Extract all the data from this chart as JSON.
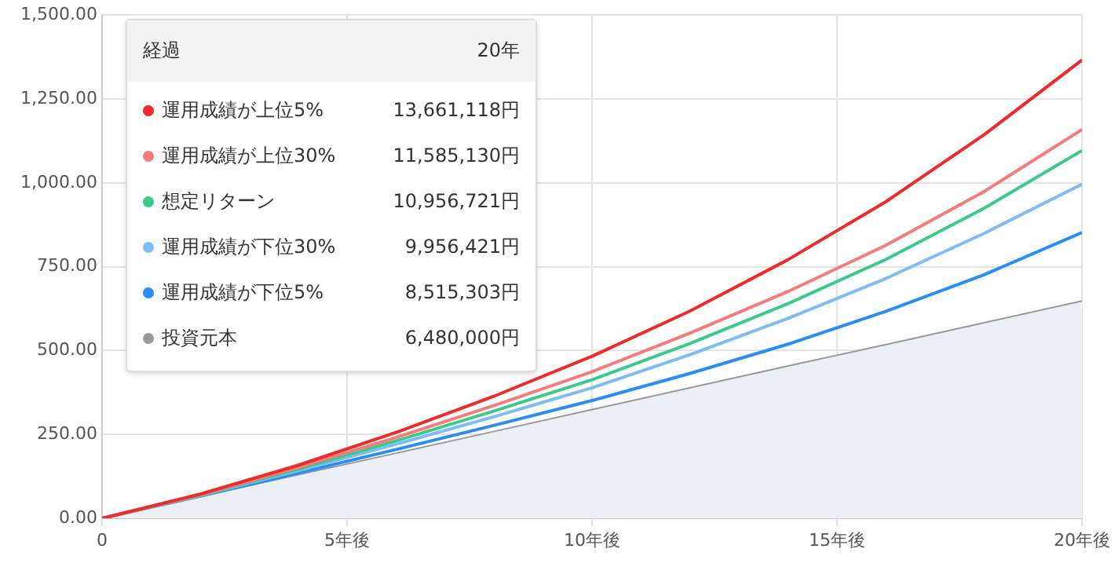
{
  "chart_data": {
    "type": "line",
    "x": [
      0,
      2,
      4,
      6,
      8,
      10,
      12,
      14,
      16,
      18,
      20
    ],
    "xlim": [
      0,
      20
    ],
    "xticks": [
      0,
      {
        "value": 5,
        "label": "5年後"
      },
      {
        "value": 10,
        "label": "10年後"
      },
      {
        "value": 15,
        "label": "15年後"
      },
      {
        "value": 20,
        "label": "20年後"
      }
    ],
    "ylim": [
      0,
      1500
    ],
    "yticks": [
      {
        "value": 0,
        "label": "0.00"
      },
      {
        "value": 250,
        "label": "250.00"
      },
      {
        "value": 500,
        "label": "500.00"
      },
      {
        "value": 750,
        "label": "750.00"
      },
      {
        "value": 1000,
        "label": "1,000.00"
      },
      {
        "value": 1250,
        "label": "1,250.00"
      },
      {
        "value": 1500,
        "label": "1,500.00"
      }
    ],
    "grid": true,
    "legend": "top left",
    "legend_title": "経過",
    "annotations": [
      "20年",
      "13,661,118円",
      "11,585,130円",
      "10,956,721円",
      "9,956,421円",
      "8,515,303円",
      "6,480,000円"
    ],
    "series": [
      {
        "name": "運用成績が上位5%",
        "color": "#ee2a2a",
        "values": [
          0,
          72,
          158,
          256,
          364,
          483,
          618,
          771,
          944,
          1143,
          1366
        ]
      },
      {
        "name": "運用成績が上位30%",
        "color": "#f77b7b",
        "values": [
          0,
          70,
          152,
          241,
          336,
          437,
          552,
          676,
          814,
          974,
          1159
        ]
      },
      {
        "name": "想定リターン",
        "color": "#3cc98c",
        "values": [
          0,
          69,
          147,
          231,
          320,
          413,
          521,
          640,
          772,
          924,
          1096
        ]
      },
      {
        "name": "運用成績が下位30%",
        "color": "#7dbcf5",
        "values": [
          0,
          68,
          142,
          221,
          303,
          389,
          488,
          596,
          715,
          849,
          996
        ]
      },
      {
        "name": "運用成績が下位5%",
        "color": "#2a8ef0",
        "values": [
          0,
          66,
          135,
          205,
          277,
          351,
          432,
          519,
          617,
          726,
          852
        ]
      },
      {
        "name": "投資元本",
        "type": "area",
        "color": "#999999",
        "values": [
          0,
          65,
          130,
          194,
          259,
          324,
          389,
          454,
          518,
          583,
          648
        ]
      }
    ]
  }
}
